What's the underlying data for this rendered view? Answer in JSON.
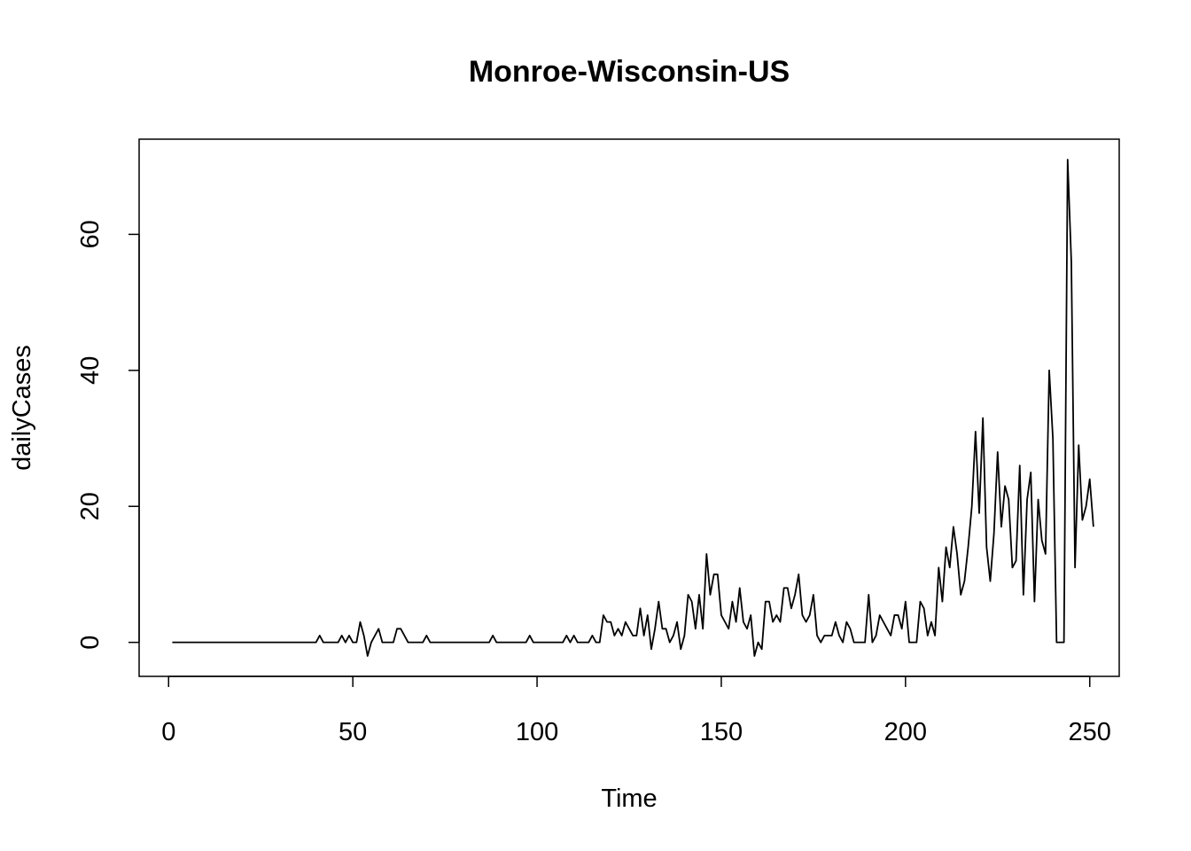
{
  "chart_data": {
    "type": "line",
    "title": "Monroe-Wisconsin-US",
    "xlabel": "Time",
    "ylabel": "dailyCases",
    "xlim": [
      -8,
      258
    ],
    "ylim": [
      -5,
      74
    ],
    "x_ticks": [
      0,
      50,
      100,
      150,
      200,
      250
    ],
    "y_ticks": [
      0,
      20,
      40,
      60
    ],
    "x_tick_labels": [
      "0",
      "50",
      "100",
      "150",
      "200",
      "250"
    ],
    "y_tick_labels": [
      "0",
      "20",
      "40",
      "60"
    ],
    "grid": false,
    "line_color": "#000000",
    "series": [
      {
        "x_start": 1,
        "values": [
          0,
          0,
          0,
          0,
          0,
          0,
          0,
          0,
          0,
          0,
          0,
          0,
          0,
          0,
          0,
          0,
          0,
          0,
          0,
          0,
          0,
          0,
          0,
          0,
          0,
          0,
          0,
          0,
          0,
          0,
          0,
          0,
          0,
          0,
          0,
          0,
          0,
          0,
          0,
          0,
          1,
          0,
          0,
          0,
          0,
          0,
          1,
          0,
          1,
          0,
          0,
          3,
          1,
          -2,
          0,
          1,
          2,
          0,
          0,
          0,
          0,
          2,
          2,
          1,
          0,
          0,
          0,
          0,
          0,
          1,
          0,
          0,
          0,
          0,
          0,
          0,
          0,
          0,
          0,
          0,
          0,
          0,
          0,
          0,
          0,
          0,
          0,
          1,
          0,
          0,
          0,
          0,
          0,
          0,
          0,
          0,
          0,
          1,
          0,
          0,
          0,
          0,
          0,
          0,
          0,
          0,
          0,
          1,
          0,
          1,
          0,
          0,
          0,
          0,
          1,
          0,
          0,
          4,
          3,
          3,
          1,
          2,
          1,
          3,
          2,
          1,
          1,
          5,
          1,
          4,
          -1,
          2,
          6,
          2,
          2,
          0,
          1,
          3,
          -1,
          1,
          7,
          6,
          2,
          7,
          2,
          13,
          7,
          10,
          10,
          4,
          3,
          2,
          6,
          3,
          8,
          3,
          2,
          4,
          -2,
          0,
          -1,
          6,
          6,
          3,
          4,
          3,
          8,
          8,
          5,
          7,
          10,
          4,
          3,
          4,
          7,
          1,
          0,
          1,
          1,
          1,
          3,
          1,
          0,
          3,
          2,
          0,
          0,
          0,
          0,
          7,
          0,
          1,
          4,
          3,
          2,
          1,
          4,
          4,
          2,
          6,
          0,
          0,
          0,
          6,
          5,
          1,
          3,
          1,
          11,
          6,
          14,
          11,
          17,
          13,
          7,
          9,
          14,
          20,
          31,
          19,
          33,
          14,
          9,
          16,
          28,
          17,
          23,
          21,
          11,
          12,
          26,
          7,
          21,
          25,
          6,
          21,
          15,
          13,
          40,
          30,
          0,
          0,
          0,
          71,
          56,
          11,
          29,
          18,
          20,
          24,
          17
        ]
      }
    ]
  }
}
